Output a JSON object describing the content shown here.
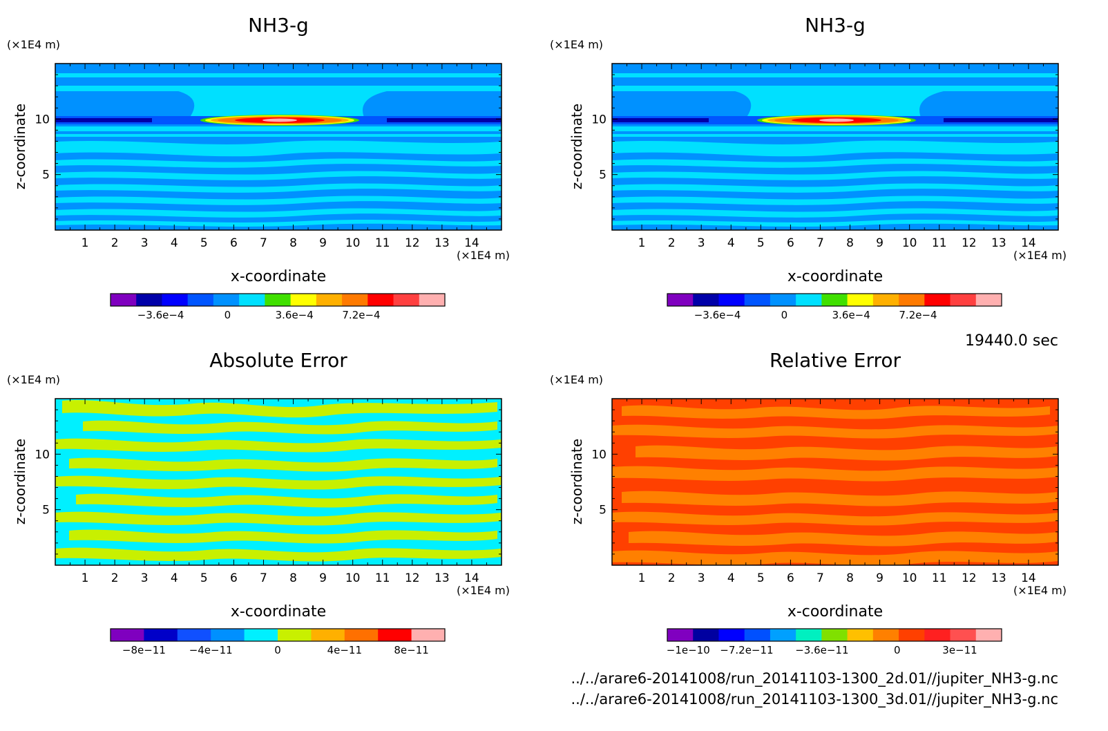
{
  "colors": {
    "nh3": [
      "#7f00bf",
      "#0000a8",
      "#0000ff",
      "#0055ff",
      "#0091ff",
      "#00e0ff",
      "#40e000",
      "#ffff00",
      "#ffb000",
      "#ff7a00",
      "#ff0000",
      "#ff4040",
      "#ffb0b0"
    ],
    "abs": [
      "#7f00bf",
      "#0000c8",
      "#1050ff",
      "#0090ff",
      "#00f0ff",
      "#c8f000",
      "#ffb000",
      "#ff7000",
      "#ff0000",
      "#ffb0b0"
    ],
    "rel": [
      "#8000c0",
      "#0000a0",
      "#0000ff",
      "#0050ff",
      "#00a0ff",
      "#00f0c0",
      "#80e000",
      "#ffc000",
      "#ff8000",
      "#ff4000",
      "#ff2020",
      "#ff5050",
      "#ffb0b0"
    ]
  },
  "chart_data": [
    {
      "type": "heatmap",
      "title": "NH3-g",
      "xlabel": "x-coordinate",
      "ylabel": "z-coordinate",
      "x_unit": "(×1E4 m)",
      "y_unit": "(×1E4 m)",
      "xlim": [
        0,
        15
      ],
      "ylim": [
        0,
        15
      ],
      "x_ticks": [
        "1",
        "2",
        "3",
        "4",
        "5",
        "6",
        "7",
        "8",
        "9",
        "10",
        "11",
        "12",
        "13",
        "14"
      ],
      "y_ticks": [
        "5",
        "10"
      ],
      "colorbar_labels": [
        "−3.6e−4",
        "0",
        "3.6e−4",
        "7.2e−4"
      ],
      "colorbar_ticks": [
        -0.00036,
        0,
        0.00036,
        0.00072
      ],
      "colorbar_range": [
        -0.00063,
        0.00117
      ]
    },
    {
      "type": "heatmap",
      "title": "NH3-g",
      "xlabel": "x-coordinate",
      "ylabel": "z-coordinate",
      "x_unit": "(×1E4 m)",
      "y_unit": "(×1E4 m)",
      "xlim": [
        0,
        15
      ],
      "ylim": [
        0,
        15
      ],
      "x_ticks": [
        "1",
        "2",
        "3",
        "4",
        "5",
        "6",
        "7",
        "8",
        "9",
        "10",
        "11",
        "12",
        "13",
        "14"
      ],
      "y_ticks": [
        "5",
        "10"
      ],
      "colorbar_labels": [
        "−3.6e−4",
        "0",
        "3.6e−4",
        "7.2e−4"
      ],
      "colorbar_ticks": [
        -0.00036,
        0,
        0.00036,
        0.00072
      ],
      "colorbar_range": [
        -0.00063,
        0.00117
      ]
    },
    {
      "type": "heatmap",
      "title": "Absolute Error",
      "xlabel": "x-coordinate",
      "ylabel": "z-coordinate",
      "x_unit": "(×1E4 m)",
      "y_unit": "(×1E4 m)",
      "xlim": [
        0,
        15
      ],
      "ylim": [
        0,
        15
      ],
      "x_ticks": [
        "1",
        "2",
        "3",
        "4",
        "5",
        "6",
        "7",
        "8",
        "9",
        "10",
        "11",
        "12",
        "13",
        "14"
      ],
      "y_ticks": [
        "5",
        "10"
      ],
      "colorbar_labels": [
        "−8e−11",
        "−4e−11",
        "0",
        "4e−11",
        "8e−11"
      ],
      "colorbar_ticks": [
        -8e-11,
        -4e-11,
        0,
        4e-11,
        8e-11
      ],
      "colorbar_range": [
        -1e-10,
        1e-10
      ]
    },
    {
      "type": "heatmap",
      "title": "Relative Error",
      "xlabel": "x-coordinate",
      "ylabel": "z-coordinate",
      "x_unit": "(×1E4 m)",
      "y_unit": "(×1E4 m)",
      "xlim": [
        0,
        15
      ],
      "ylim": [
        0,
        15
      ],
      "x_ticks": [
        "1",
        "2",
        "3",
        "4",
        "5",
        "6",
        "7",
        "8",
        "9",
        "10",
        "11",
        "12",
        "13",
        "14"
      ],
      "y_ticks": [
        "5",
        "10"
      ],
      "colorbar_labels": [
        "−1e−10",
        "−7.2e−11",
        "−3.6e−11",
        "0",
        "3e−11"
      ],
      "colorbar_ticks": [
        -1e-10,
        -7.2e-11,
        -3.6e-11,
        0,
        3e-11
      ],
      "colorbar_range": [
        -1.1e-10,
        5e-11
      ]
    }
  ],
  "time_label": "19440.0 sec",
  "file_lines": [
    "../../arare6-20141008/run_20141103-1300_2d.01//jupiter_NH3-g.nc",
    "../../arare6-20141008/run_20141103-1300_3d.01//jupiter_NH3-g.nc"
  ]
}
